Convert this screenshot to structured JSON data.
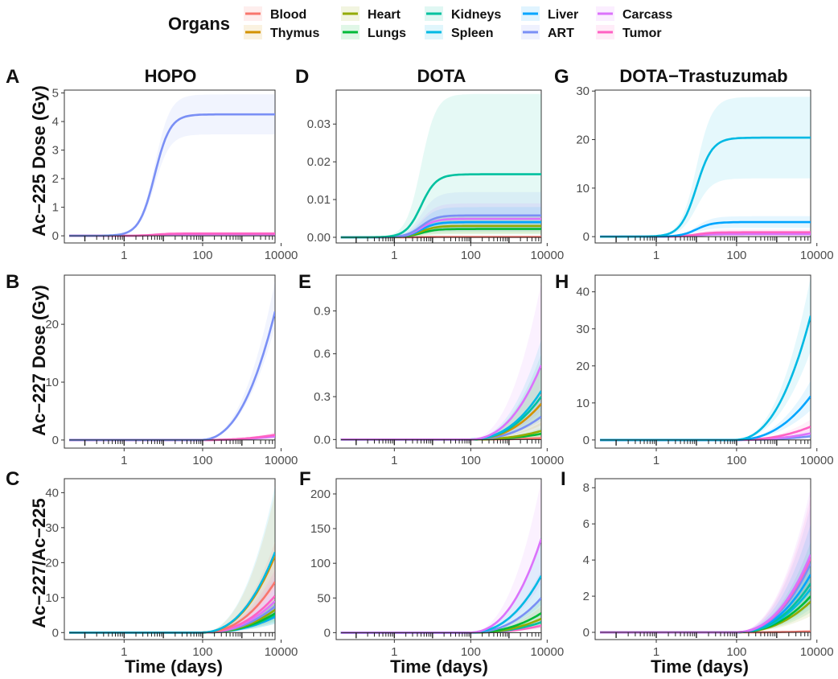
{
  "legend": {
    "title": "Organs",
    "items": [
      {
        "name": "Blood",
        "color": "#F8766D"
      },
      {
        "name": "Thymus",
        "color": "#D39200"
      },
      {
        "name": "Heart",
        "color": "#93AA00"
      },
      {
        "name": "Lungs",
        "color": "#00BA38"
      },
      {
        "name": "Kidneys",
        "color": "#00C19F"
      },
      {
        "name": "Spleen",
        "color": "#00B9E3"
      },
      {
        "name": "Liver",
        "color": "#00A5FF"
      },
      {
        "name": "ART",
        "color": "#7A8FF5"
      },
      {
        "name": "Carcass",
        "color": "#DB72FB"
      },
      {
        "name": "Tumor",
        "color": "#FF61C3"
      }
    ]
  },
  "columns": [
    {
      "title": "HOPO"
    },
    {
      "title": "DOTA"
    },
    {
      "title": "DOTA−Trastuzumab"
    }
  ],
  "row_labels": [
    "Ac−225 Dose (Gy)",
    "Ac−227 Dose (Gy)",
    "Ac−227/Ac−225"
  ],
  "x_axis_label": "Time (days)",
  "chart_data": [
    {
      "panel": "A",
      "type": "line",
      "title": "HOPO",
      "ylabel": "Ac−225 Dose (Gy)",
      "xlabel": "",
      "x_scale": "log10",
      "xlim": [
        0.03,
        7000
      ],
      "x_ticks": [
        1,
        100,
        10000
      ],
      "x_tick_labels": [
        "1",
        "100",
        "10000"
      ],
      "ylim": [
        -0.25,
        5.1
      ],
      "y_ticks": [
        0,
        1,
        2,
        3,
        4,
        5
      ],
      "y_tick_labels": [
        "0",
        "1",
        "2",
        "3",
        "4",
        "5"
      ],
      "series": [
        {
          "name": "ART",
          "color": "#7A8FF5",
          "kind": "sigmoid",
          "plateau": 4.25,
          "t_mid": 6,
          "lower": 3.55,
          "upper": 4.95
        },
        {
          "name": "Tumor",
          "color": "#FF61C3",
          "kind": "sigmoid",
          "plateau": 0.08,
          "t_mid": 6,
          "lower": 0.03,
          "upper": 0.15
        },
        {
          "name": "Carcass",
          "color": "#DB72FB",
          "kind": "sigmoid",
          "plateau": 0.05,
          "t_mid": 6,
          "lower": 0.02,
          "upper": 0.1
        }
      ]
    },
    {
      "panel": "D",
      "type": "line",
      "title": "DOTA",
      "ylabel": "",
      "xlabel": "",
      "x_scale": "log10",
      "xlim": [
        0.03,
        7000
      ],
      "x_ticks": [
        1,
        100,
        10000
      ],
      "x_tick_labels": [
        "1",
        "100",
        "10000"
      ],
      "ylim": [
        -0.0015,
        0.039
      ],
      "y_ticks": [
        0,
        0.01,
        0.02,
        0.03
      ],
      "y_tick_labels": [
        "0.00",
        "0.01",
        "0.02",
        "0.03"
      ],
      "series": [
        {
          "name": "Kidneys",
          "color": "#00C19F",
          "kind": "sigmoid",
          "plateau": 0.0167,
          "t_mid": 5,
          "lower": 0.004,
          "upper": 0.038
        },
        {
          "name": "ART",
          "color": "#7A8FF5",
          "kind": "sigmoid",
          "plateau": 0.0058,
          "t_mid": 5,
          "lower": 0.002,
          "upper": 0.012
        },
        {
          "name": "Carcass",
          "color": "#DB72FB",
          "kind": "sigmoid",
          "plateau": 0.0049,
          "t_mid": 5,
          "lower": 0.0018,
          "upper": 0.009
        },
        {
          "name": "Liver",
          "color": "#00A5FF",
          "kind": "sigmoid",
          "plateau": 0.004,
          "t_mid": 5,
          "lower": 0.0015,
          "upper": 0.008
        },
        {
          "name": "Heart",
          "color": "#93AA00",
          "kind": "sigmoid",
          "plateau": 0.003,
          "t_mid": 5,
          "lower": 0.001,
          "upper": 0.006
        },
        {
          "name": "Lungs",
          "color": "#00BA38",
          "kind": "sigmoid",
          "plateau": 0.0022,
          "t_mid": 5,
          "lower": 0.0008,
          "upper": 0.0045
        },
        {
          "name": "Blood",
          "color": "#F8766D",
          "kind": "sigmoid",
          "plateau": 0.0001,
          "t_mid": 5,
          "lower": 0.0,
          "upper": 0.0003
        }
      ]
    },
    {
      "panel": "G",
      "type": "line",
      "title": "DOTA−Trastuzumab",
      "ylabel": "",
      "xlabel": "",
      "x_scale": "log10",
      "xlim": [
        0.03,
        7000
      ],
      "x_ticks": [
        1,
        100,
        10000
      ],
      "x_tick_labels": [
        "1",
        "100",
        "10000"
      ],
      "ylim": [
        -1.3,
        30.2
      ],
      "y_ticks": [
        0,
        10,
        20,
        30
      ],
      "y_tick_labels": [
        "0",
        "10",
        "20",
        "30"
      ],
      "series": [
        {
          "name": "Spleen",
          "color": "#00B9E3",
          "kind": "sigmoid",
          "plateau": 20.4,
          "t_mid": 10,
          "lower": 12.0,
          "upper": 28.8
        },
        {
          "name": "Liver",
          "color": "#00A5FF",
          "kind": "sigmoid",
          "plateau": 3.0,
          "t_mid": 10,
          "lower": 1.8,
          "upper": 4.2
        },
        {
          "name": "Tumor",
          "color": "#FF61C3",
          "kind": "sigmoid",
          "plateau": 0.9,
          "t_mid": 10,
          "lower": 0.4,
          "upper": 1.5
        },
        {
          "name": "Carcass",
          "color": "#DB72FB",
          "kind": "sigmoid",
          "plateau": 0.5,
          "t_mid": 10,
          "lower": 0.2,
          "upper": 1.0
        }
      ]
    },
    {
      "panel": "B",
      "type": "line",
      "title": "",
      "ylabel": "Ac−227 Dose (Gy)",
      "xlabel": "",
      "x_scale": "log10",
      "xlim": [
        0.03,
        7000
      ],
      "x_ticks": [
        1,
        100,
        10000
      ],
      "x_tick_labels": [
        "1",
        "100",
        "10000"
      ],
      "ylim": [
        -1.4,
        28.5
      ],
      "y_ticks": [
        0,
        10,
        20
      ],
      "y_tick_labels": [
        "0",
        "10",
        "20"
      ],
      "series": [
        {
          "name": "ART",
          "color": "#7A8FF5",
          "kind": "growth",
          "end": 22.2,
          "lower": 19.5,
          "upper": 27.5
        },
        {
          "name": "Tumor",
          "color": "#FF61C3",
          "kind": "growth",
          "end": 0.9,
          "lower": 0.5,
          "upper": 1.4
        },
        {
          "name": "Carcass",
          "color": "#DB72FB",
          "kind": "growth",
          "end": 0.6,
          "lower": 0.3,
          "upper": 1.0
        }
      ]
    },
    {
      "panel": "E",
      "type": "line",
      "title": "",
      "ylabel": "",
      "xlabel": "",
      "x_scale": "log10",
      "xlim": [
        0.03,
        7000
      ],
      "x_ticks": [
        1,
        100,
        10000
      ],
      "x_tick_labels": [
        "1",
        "100",
        "10000"
      ],
      "ylim": [
        -0.06,
        1.15
      ],
      "y_ticks": [
        0,
        0.3,
        0.6,
        0.9
      ],
      "y_tick_labels": [
        "0.0",
        "0.3",
        "0.6",
        "0.9"
      ],
      "series": [
        {
          "name": "Carcass",
          "color": "#DB72FB",
          "kind": "growth",
          "end": 0.52,
          "lower": 0.2,
          "upper": 1.1
        },
        {
          "name": "Spleen",
          "color": "#00B9E3",
          "kind": "growth",
          "end": 0.34,
          "lower": 0.15,
          "upper": 0.7
        },
        {
          "name": "Kidneys",
          "color": "#00C19F",
          "kind": "growth",
          "end": 0.3,
          "lower": 0.13,
          "upper": 0.6
        },
        {
          "name": "Thymus",
          "color": "#D39200",
          "kind": "growth",
          "end": 0.25,
          "lower": 0.1,
          "upper": 0.5
        },
        {
          "name": "ART",
          "color": "#7A8FF5",
          "kind": "growth",
          "end": 0.16,
          "lower": 0.06,
          "upper": 0.32
        },
        {
          "name": "Heart",
          "color": "#93AA00",
          "kind": "growth",
          "end": 0.06,
          "lower": 0.02,
          "upper": 0.12
        },
        {
          "name": "Lungs",
          "color": "#00BA38",
          "kind": "growth",
          "end": 0.04,
          "lower": 0.01,
          "upper": 0.08
        },
        {
          "name": "Blood",
          "color": "#F8766D",
          "kind": "growth",
          "end": 0.01,
          "lower": 0.0,
          "upper": 0.03
        }
      ]
    },
    {
      "panel": "H",
      "type": "line",
      "title": "",
      "ylabel": "",
      "xlabel": "",
      "x_scale": "log10",
      "xlim": [
        0.03,
        7000
      ],
      "x_ticks": [
        1,
        100,
        10000
      ],
      "x_tick_labels": [
        "1",
        "100",
        "10000"
      ],
      "ylim": [
        -2.2,
        44.5
      ],
      "y_ticks": [
        0,
        10,
        20,
        30,
        40
      ],
      "y_tick_labels": [
        "0",
        "10",
        "20",
        "30",
        "40"
      ],
      "series": [
        {
          "name": "Spleen",
          "color": "#00B9E3",
          "kind": "growth",
          "end": 33.5,
          "lower": 24.0,
          "upper": 44.0
        },
        {
          "name": "Liver",
          "color": "#00A5FF",
          "kind": "growth",
          "end": 11.8,
          "lower": 8.0,
          "upper": 16.0
        },
        {
          "name": "Tumor",
          "color": "#FF61C3",
          "kind": "growth",
          "end": 3.6,
          "lower": 2.0,
          "upper": 5.5
        },
        {
          "name": "Carcass",
          "color": "#DB72FB",
          "kind": "growth",
          "end": 1.8,
          "lower": 0.8,
          "upper": 3.0
        },
        {
          "name": "ART",
          "color": "#7A8FF5",
          "kind": "growth",
          "end": 1.0,
          "lower": 0.4,
          "upper": 1.8
        }
      ]
    },
    {
      "panel": "C",
      "type": "line",
      "title": "",
      "ylabel": "Ac−227/Ac−225",
      "xlabel": "Time (days)",
      "x_scale": "log10",
      "xlim": [
        0.03,
        7000
      ],
      "x_ticks": [
        1,
        100,
        10000
      ],
      "x_tick_labels": [
        "1",
        "100",
        "10000"
      ],
      "ylim": [
        -2.0,
        44.0
      ],
      "y_ticks": [
        0,
        10,
        20,
        30,
        40
      ],
      "y_tick_labels": [
        "0",
        "10",
        "20",
        "30",
        "40"
      ],
      "series": [
        {
          "name": "Spleen",
          "color": "#00B9E3",
          "kind": "growth",
          "end": 23.0,
          "lower": 14.0,
          "upper": 42.0
        },
        {
          "name": "Thymus",
          "color": "#D39200",
          "kind": "growth",
          "end": 22.0,
          "lower": 13.0,
          "upper": 40.0
        },
        {
          "name": "Blood",
          "color": "#F8766D",
          "kind": "growth",
          "end": 14.5,
          "lower": 8.0,
          "upper": 26.0
        },
        {
          "name": "Tumor",
          "color": "#FF61C3",
          "kind": "growth",
          "end": 10.5,
          "lower": 6.0,
          "upper": 18.0
        },
        {
          "name": "Carcass",
          "color": "#DB72FB",
          "kind": "growth",
          "end": 9.0,
          "lower": 5.0,
          "upper": 16.0
        },
        {
          "name": "ART",
          "color": "#7A8FF5",
          "kind": "growth",
          "end": 7.5,
          "lower": 4.0,
          "upper": 13.0
        },
        {
          "name": "Heart",
          "color": "#93AA00",
          "kind": "growth",
          "end": 6.5,
          "lower": 3.5,
          "upper": 11.0
        },
        {
          "name": "Lungs",
          "color": "#00BA38",
          "kind": "growth",
          "end": 5.5,
          "lower": 3.0,
          "upper": 9.5
        },
        {
          "name": "Kidneys",
          "color": "#00C19F",
          "kind": "growth",
          "end": 5.0,
          "lower": 2.5,
          "upper": 9.0
        },
        {
          "name": "Liver",
          "color": "#00A5FF",
          "kind": "growth",
          "end": 4.5,
          "lower": 2.5,
          "upper": 8.0
        }
      ]
    },
    {
      "panel": "F",
      "type": "line",
      "title": "",
      "ylabel": "",
      "xlabel": "Time (days)",
      "x_scale": "log10",
      "xlim": [
        0.03,
        7000
      ],
      "x_ticks": [
        1,
        100,
        10000
      ],
      "x_tick_labels": [
        "1",
        "100",
        "10000"
      ],
      "ylim": [
        -10.0,
        222.0
      ],
      "y_ticks": [
        0,
        50,
        100,
        150,
        200
      ],
      "y_tick_labels": [
        "0",
        "50",
        "100",
        "150",
        "200"
      ],
      "series": [
        {
          "name": "Carcass",
          "color": "#DB72FB",
          "kind": "growth",
          "end": 135.0,
          "lower": 70.0,
          "upper": 220.0
        },
        {
          "name": "Spleen",
          "color": "#00B9E3",
          "kind": "growth",
          "end": 82.0,
          "lower": 40.0,
          "upper": 140.0
        },
        {
          "name": "ART",
          "color": "#7A8FF5",
          "kind": "growth",
          "end": 50.0,
          "lower": 25.0,
          "upper": 90.0
        },
        {
          "name": "Lungs",
          "color": "#00BA38",
          "kind": "growth",
          "end": 28.0,
          "lower": 12.0,
          "upper": 50.0
        },
        {
          "name": "Heart",
          "color": "#93AA00",
          "kind": "growth",
          "end": 20.0,
          "lower": 9.0,
          "upper": 38.0
        },
        {
          "name": "Kidneys",
          "color": "#00C19F",
          "kind": "growth",
          "end": 15.0,
          "lower": 7.0,
          "upper": 28.0
        },
        {
          "name": "Tumor",
          "color": "#FF61C3",
          "kind": "growth",
          "end": 10.0,
          "lower": 5.0,
          "upper": 20.0
        }
      ]
    },
    {
      "panel": "I",
      "type": "line",
      "title": "",
      "ylabel": "",
      "xlabel": "Time (days)",
      "x_scale": "log10",
      "xlim": [
        0.03,
        7000
      ],
      "x_ticks": [
        1,
        100,
        10000
      ],
      "x_tick_labels": [
        "1",
        "100",
        "10000"
      ],
      "ylim": [
        -0.4,
        8.5
      ],
      "y_ticks": [
        0,
        2,
        4,
        6,
        8
      ],
      "y_tick_labels": [
        "0",
        "2",
        "4",
        "6",
        "8"
      ],
      "series": [
        {
          "name": "Carcass",
          "color": "#DB72FB",
          "kind": "growth",
          "end": 4.3,
          "lower": 2.5,
          "upper": 8.0
        },
        {
          "name": "Tumor",
          "color": "#FF61C3",
          "kind": "growth",
          "end": 4.1,
          "lower": 2.4,
          "upper": 7.5
        },
        {
          "name": "ART",
          "color": "#7A8FF5",
          "kind": "growth",
          "end": 3.8,
          "lower": 2.2,
          "upper": 7.0
        },
        {
          "name": "Liver",
          "color": "#00A5FF",
          "kind": "growth",
          "end": 3.2,
          "lower": 1.8,
          "upper": 6.0
        },
        {
          "name": "Kidneys",
          "color": "#00C19F",
          "kind": "growth",
          "end": 2.7,
          "lower": 1.5,
          "upper": 5.0
        },
        {
          "name": "Spleen",
          "color": "#00B9E3",
          "kind": "growth",
          "end": 2.4,
          "lower": 1.3,
          "upper": 4.5
        },
        {
          "name": "Lungs",
          "color": "#00BA38",
          "kind": "growth",
          "end": 2.0,
          "lower": 1.1,
          "upper": 3.8
        },
        {
          "name": "Heart",
          "color": "#93AA00",
          "kind": "growth",
          "end": 1.7,
          "lower": 0.9,
          "upper": 3.2
        },
        {
          "name": "Blood",
          "color": "#F8766D",
          "kind": "growth",
          "end": 0.05,
          "lower": 0.0,
          "upper": 0.15
        }
      ]
    }
  ]
}
